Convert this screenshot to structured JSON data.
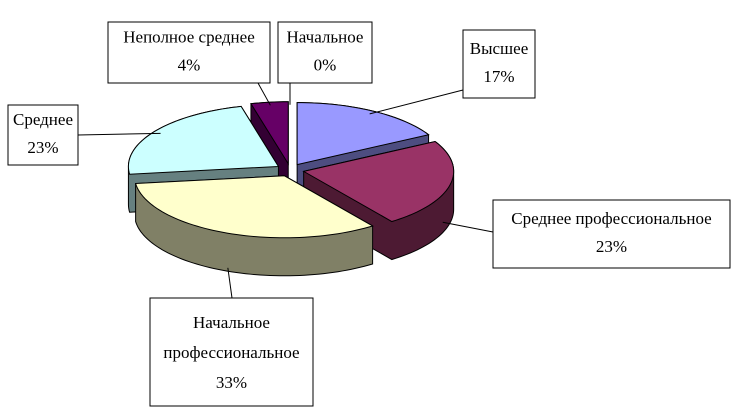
{
  "chart_data": {
    "type": "pie3d",
    "categories": [
      "Высшее",
      "Среднее профессиональное",
      "Начальное профессиональное",
      "Среднее",
      "Неполное среднее",
      "Начальное"
    ],
    "values": [
      17,
      23,
      33,
      23,
      4,
      0
    ],
    "value_labels": [
      "17%",
      "23%",
      "33%",
      "23%",
      "4%",
      "0%"
    ],
    "colors": [
      "#9999ff",
      "#993366",
      "#ffffcc",
      "#ccffff",
      "#660066",
      "#ff8080"
    ]
  }
}
